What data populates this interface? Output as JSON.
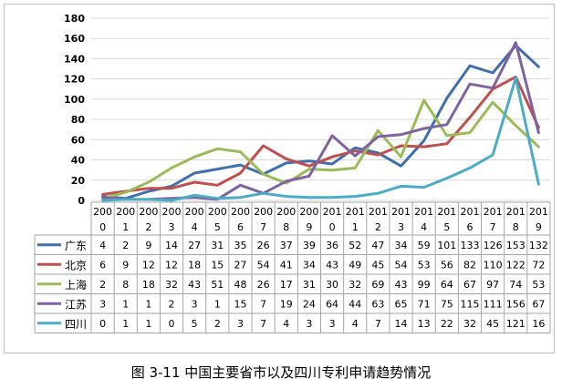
{
  "caption": "图 3-11 中国主要省市以及四川专利申请趋势情况",
  "chart_data": {
    "type": "line",
    "title": "",
    "xlabel": "",
    "ylabel": "",
    "ylim": [
      0,
      180
    ],
    "yticks": [
      0,
      20,
      40,
      60,
      80,
      100,
      120,
      140,
      160,
      180
    ],
    "grid": true,
    "legend": "data-table-left",
    "categories": [
      {
        "top": "200",
        "bottom": "0"
      },
      {
        "top": "200",
        "bottom": "1"
      },
      {
        "top": "200",
        "bottom": "2"
      },
      {
        "top": "200",
        "bottom": "3"
      },
      {
        "top": "200",
        "bottom": "4"
      },
      {
        "top": "200",
        "bottom": "5"
      },
      {
        "top": "200",
        "bottom": "6"
      },
      {
        "top": "200",
        "bottom": "7"
      },
      {
        "top": "200",
        "bottom": "8"
      },
      {
        "top": "200",
        "bottom": "9"
      },
      {
        "top": "201",
        "bottom": "0"
      },
      {
        "top": "201",
        "bottom": "1"
      },
      {
        "top": "201",
        "bottom": "2"
      },
      {
        "top": "201",
        "bottom": "3"
      },
      {
        "top": "201",
        "bottom": "4"
      },
      {
        "top": "201",
        "bottom": "5"
      },
      {
        "top": "201",
        "bottom": "6"
      },
      {
        "top": "201",
        "bottom": "7"
      },
      {
        "top": "201",
        "bottom": "8"
      },
      {
        "top": "201",
        "bottom": "9"
      }
    ],
    "series": [
      {
        "name": "广东",
        "color": "#3f6fae",
        "values": [
          4,
          2,
          9,
          14,
          27,
          31,
          35,
          26,
          37,
          39,
          36,
          52,
          47,
          34,
          59,
          101,
          133,
          126,
          153,
          132
        ]
      },
      {
        "name": "北京",
        "color": "#c0504d",
        "values": [
          6,
          9,
          12,
          12,
          18,
          15,
          27,
          54,
          41,
          34,
          43,
          49,
          45,
          54,
          53,
          56,
          82,
          110,
          122,
          72
        ]
      },
      {
        "name": "上海",
        "color": "#9bbb59",
        "values": [
          2,
          8,
          18,
          32,
          43,
          51,
          48,
          26,
          17,
          31,
          30,
          32,
          69,
          43,
          99,
          64,
          67,
          97,
          74,
          53
        ]
      },
      {
        "name": "江苏",
        "color": "#7f63a0",
        "values": [
          3,
          1,
          1,
          2,
          3,
          1,
          15,
          7,
          19,
          24,
          64,
          44,
          63,
          65,
          71,
          75,
          115,
          111,
          156,
          67
        ]
      },
      {
        "name": "四川",
        "color": "#4bacc6",
        "values": [
          0,
          1,
          1,
          0,
          5,
          2,
          3,
          7,
          4,
          3,
          3,
          4,
          7,
          14,
          13,
          22,
          32,
          45,
          121,
          16
        ]
      }
    ]
  }
}
